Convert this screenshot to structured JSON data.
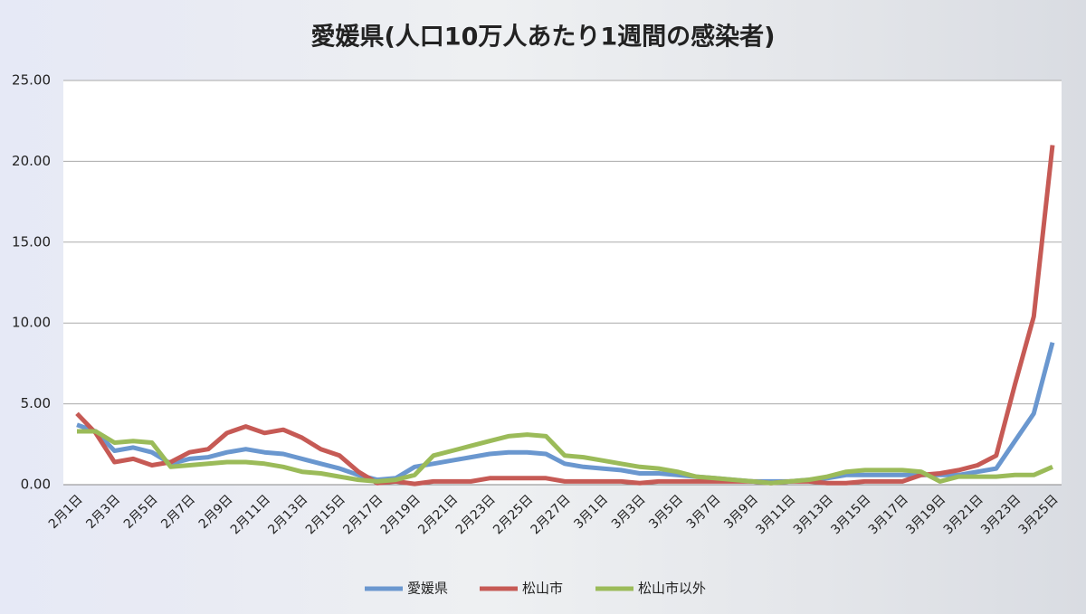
{
  "chart_data": {
    "type": "line",
    "title": "愛媛県(人口10万人あたり1週間の感染者)",
    "categories": [
      "2月1日",
      null,
      "2月3日",
      null,
      "2月5日",
      null,
      "2月7日",
      null,
      "2月9日",
      null,
      "2月11日",
      null,
      "2月13日",
      null,
      "2月15日",
      null,
      "2月17日",
      null,
      "2月19日",
      null,
      "2月21日",
      null,
      "2月23日",
      null,
      "2月25日",
      null,
      "2月27日",
      null,
      "3月1日",
      null,
      "3月3日",
      null,
      "3月5日",
      null,
      "3月7日",
      null,
      "3月9日",
      null,
      "3月11日",
      null,
      "3月13日",
      null,
      "3月15日",
      null,
      "3月17日",
      null,
      "3月19日",
      null,
      "3月21日",
      null,
      "3月23日",
      null,
      "3月25日"
    ],
    "series": [
      {
        "name": "愛媛県",
        "color": "#6a97cf",
        "values": [
          3.7,
          3.3,
          2.1,
          2.3,
          2.0,
          1.3,
          1.6,
          1.7,
          2.0,
          2.2,
          2.0,
          1.9,
          1.6,
          1.3,
          1.0,
          0.6,
          0.3,
          0.4,
          1.1,
          1.3,
          1.5,
          1.7,
          1.9,
          2.0,
          2.0,
          1.9,
          1.3,
          1.1,
          1.0,
          0.9,
          0.7,
          0.7,
          0.6,
          0.5,
          0.4,
          0.3,
          0.2,
          0.2,
          0.2,
          0.3,
          0.4,
          0.6,
          0.6,
          0.6,
          0.6,
          0.6,
          0.6,
          0.6,
          0.8,
          1.0,
          2.7,
          4.4,
          8.8
        ]
      },
      {
        "name": "松山市",
        "color": "#c65a55",
        "values": [
          4.4,
          3.2,
          1.4,
          1.6,
          1.2,
          1.4,
          2.0,
          2.2,
          3.2,
          3.6,
          3.2,
          3.4,
          2.9,
          2.2,
          1.8,
          0.8,
          0.1,
          0.2,
          0.05,
          0.2,
          0.2,
          0.2,
          0.4,
          0.4,
          0.4,
          0.4,
          0.2,
          0.2,
          0.2,
          0.2,
          0.1,
          0.2,
          0.2,
          0.2,
          0.2,
          0.2,
          0.2,
          0.1,
          0.2,
          0.2,
          0.1,
          0.1,
          0.2,
          0.2,
          0.2,
          0.6,
          0.7,
          0.9,
          1.2,
          1.8,
          6.2,
          10.4,
          21.0
        ]
      },
      {
        "name": "松山市以外",
        "color": "#9bbb59",
        "values": [
          3.3,
          3.3,
          2.6,
          2.7,
          2.6,
          1.1,
          1.2,
          1.3,
          1.4,
          1.4,
          1.3,
          1.1,
          0.8,
          0.7,
          0.5,
          0.3,
          0.2,
          0.3,
          0.6,
          1.8,
          2.1,
          2.4,
          2.7,
          3.0,
          3.1,
          3.0,
          1.8,
          1.7,
          1.5,
          1.3,
          1.1,
          1.0,
          0.8,
          0.5,
          0.4,
          0.3,
          0.2,
          0.1,
          0.2,
          0.3,
          0.5,
          0.8,
          0.9,
          0.9,
          0.9,
          0.8,
          0.2,
          0.5,
          0.5,
          0.5,
          0.6,
          0.6,
          1.1
        ]
      }
    ],
    "ylim": [
      0,
      25
    ],
    "yticks": [
      {
        "value": 0,
        "label": "0.00"
      },
      {
        "value": 5,
        "label": "5.00"
      },
      {
        "value": 10,
        "label": "10.00"
      },
      {
        "value": 15,
        "label": "15.00"
      },
      {
        "value": 20,
        "label": "20.00"
      },
      {
        "value": 25,
        "label": "25.00"
      }
    ],
    "grid": true,
    "legend": "bottom"
  }
}
